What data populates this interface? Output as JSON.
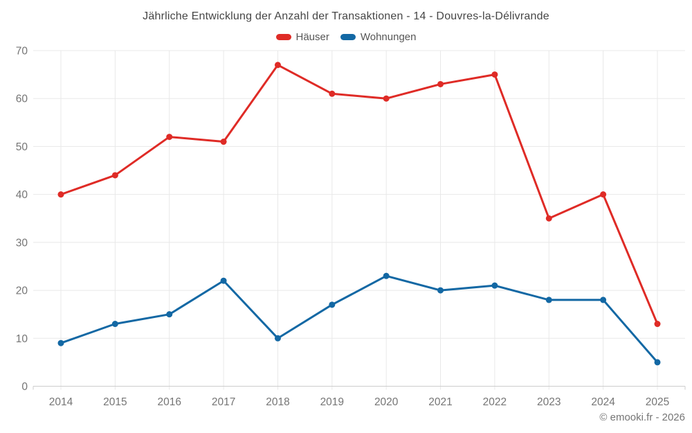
{
  "header": {
    "title": "Jährliche Entwicklung der Anzahl der Transaktionen - 14 - Douvres-la-Délivrande"
  },
  "footer": {
    "copyright": "© emooki.fr - 2026"
  },
  "chart_data": {
    "type": "line",
    "title": "Jährliche Entwicklung der Anzahl der Transaktionen - 14 - Douvres-la-Délivrande",
    "categories": [
      "2014",
      "2015",
      "2016",
      "2017",
      "2018",
      "2019",
      "2020",
      "2021",
      "2022",
      "2023",
      "2024",
      "2025"
    ],
    "series": [
      {
        "name": "Häuser",
        "color": "#df2b26",
        "values": [
          40,
          44,
          52,
          51,
          67,
          61,
          60,
          63,
          65,
          35,
          40,
          13
        ]
      },
      {
        "name": "Wohnungen",
        "color": "#1368a4",
        "values": [
          9,
          13,
          15,
          22,
          10,
          17,
          23,
          20,
          21,
          18,
          18,
          5
        ]
      }
    ],
    "xlabel": "",
    "ylabel": "",
    "ylim": [
      0,
      70
    ],
    "ytick_step": 10,
    "yticks": [
      0,
      10,
      20,
      30,
      40,
      50,
      60,
      70
    ],
    "grid": true,
    "legend_position": "top",
    "footer": "© emooki.fr - 2026"
  },
  "style": {
    "grid_color": "#e8e8e8",
    "axis_color": "#cccccc",
    "tick_label_color": "#757575",
    "title_color": "#464646",
    "legend_text_color": "#565656"
  }
}
